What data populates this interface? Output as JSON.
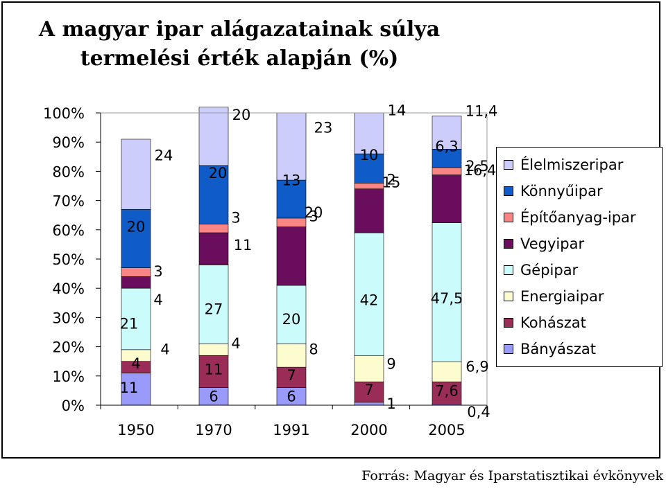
{
  "title": "A magyar ipar alágazatainak súlya termelési érték alapján (%)",
  "source": "Forrás: Magyar és Iparstatisztikai évkönyvek",
  "colors": {
    "Élelmiszeripar": "#cccdfb",
    "Könnyűipar": "#0f5bc8",
    "Építőanyag-ipar": "#f98584",
    "Vegyipar": "#6a0d5c",
    "Gépipar": "#ccfbfc",
    "Energiaipar": "#fdfccf",
    "Kohászat": "#992d57",
    "Bányászat": "#9a9afa"
  },
  "chart_data": {
    "type": "bar",
    "stacked": "percent",
    "categories": [
      "1950",
      "1970",
      "1991",
      "2000",
      "2005"
    ],
    "y_ticks": [
      "0%",
      "10%",
      "20%",
      "30%",
      "40%",
      "50%",
      "60%",
      "70%",
      "80%",
      "90%",
      "100%"
    ],
    "ylim": [
      0,
      100
    ],
    "grid": false,
    "legend_position": "right",
    "series": [
      {
        "name": "Bányászat",
        "values": [
          11,
          6,
          6,
          1,
          0.4
        ],
        "labels": [
          "11",
          "6",
          "6",
          "1",
          "0,4"
        ]
      },
      {
        "name": "Kohászat",
        "values": [
          4,
          11,
          7,
          7,
          7.6
        ],
        "labels": [
          "4",
          "11",
          "7",
          "7",
          "7,6"
        ]
      },
      {
        "name": "Energiaipar",
        "values": [
          4,
          4,
          8,
          9,
          6.9
        ],
        "labels": [
          "4",
          "4",
          "8",
          "9",
          "6,9"
        ]
      },
      {
        "name": "Gépipar",
        "values": [
          21,
          27,
          20,
          42,
          47.5
        ],
        "labels": [
          "21",
          "27",
          "20",
          "42",
          "47,5"
        ]
      },
      {
        "name": "Vegyipar",
        "values": [
          4,
          11,
          20,
          15,
          16.4
        ],
        "labels": [
          "4",
          "11",
          "20",
          "15",
          "16,4"
        ]
      },
      {
        "name": "Építőanyag-ipar",
        "values": [
          3,
          3,
          3,
          2,
          2.5
        ],
        "labels": [
          "3",
          "3",
          "3",
          "2",
          "2,5"
        ]
      },
      {
        "name": "Könnyűipar",
        "values": [
          20,
          20,
          13,
          10,
          6.3
        ],
        "labels": [
          "20",
          "20",
          "13",
          "10",
          "6,3"
        ]
      },
      {
        "name": "Élelmiszeripar",
        "values": [
          24,
          20,
          23,
          14,
          11.4
        ],
        "labels": [
          "24",
          "20",
          "23",
          "14",
          "11,4"
        ]
      }
    ]
  },
  "legend": {
    "items": [
      "Élelmiszeripar",
      "Könnyűipar",
      "Építőanyag-ipar",
      "Vegyipar",
      "Gépipar",
      "Energiaipar",
      "Kohászat",
      "Bányászat"
    ]
  }
}
